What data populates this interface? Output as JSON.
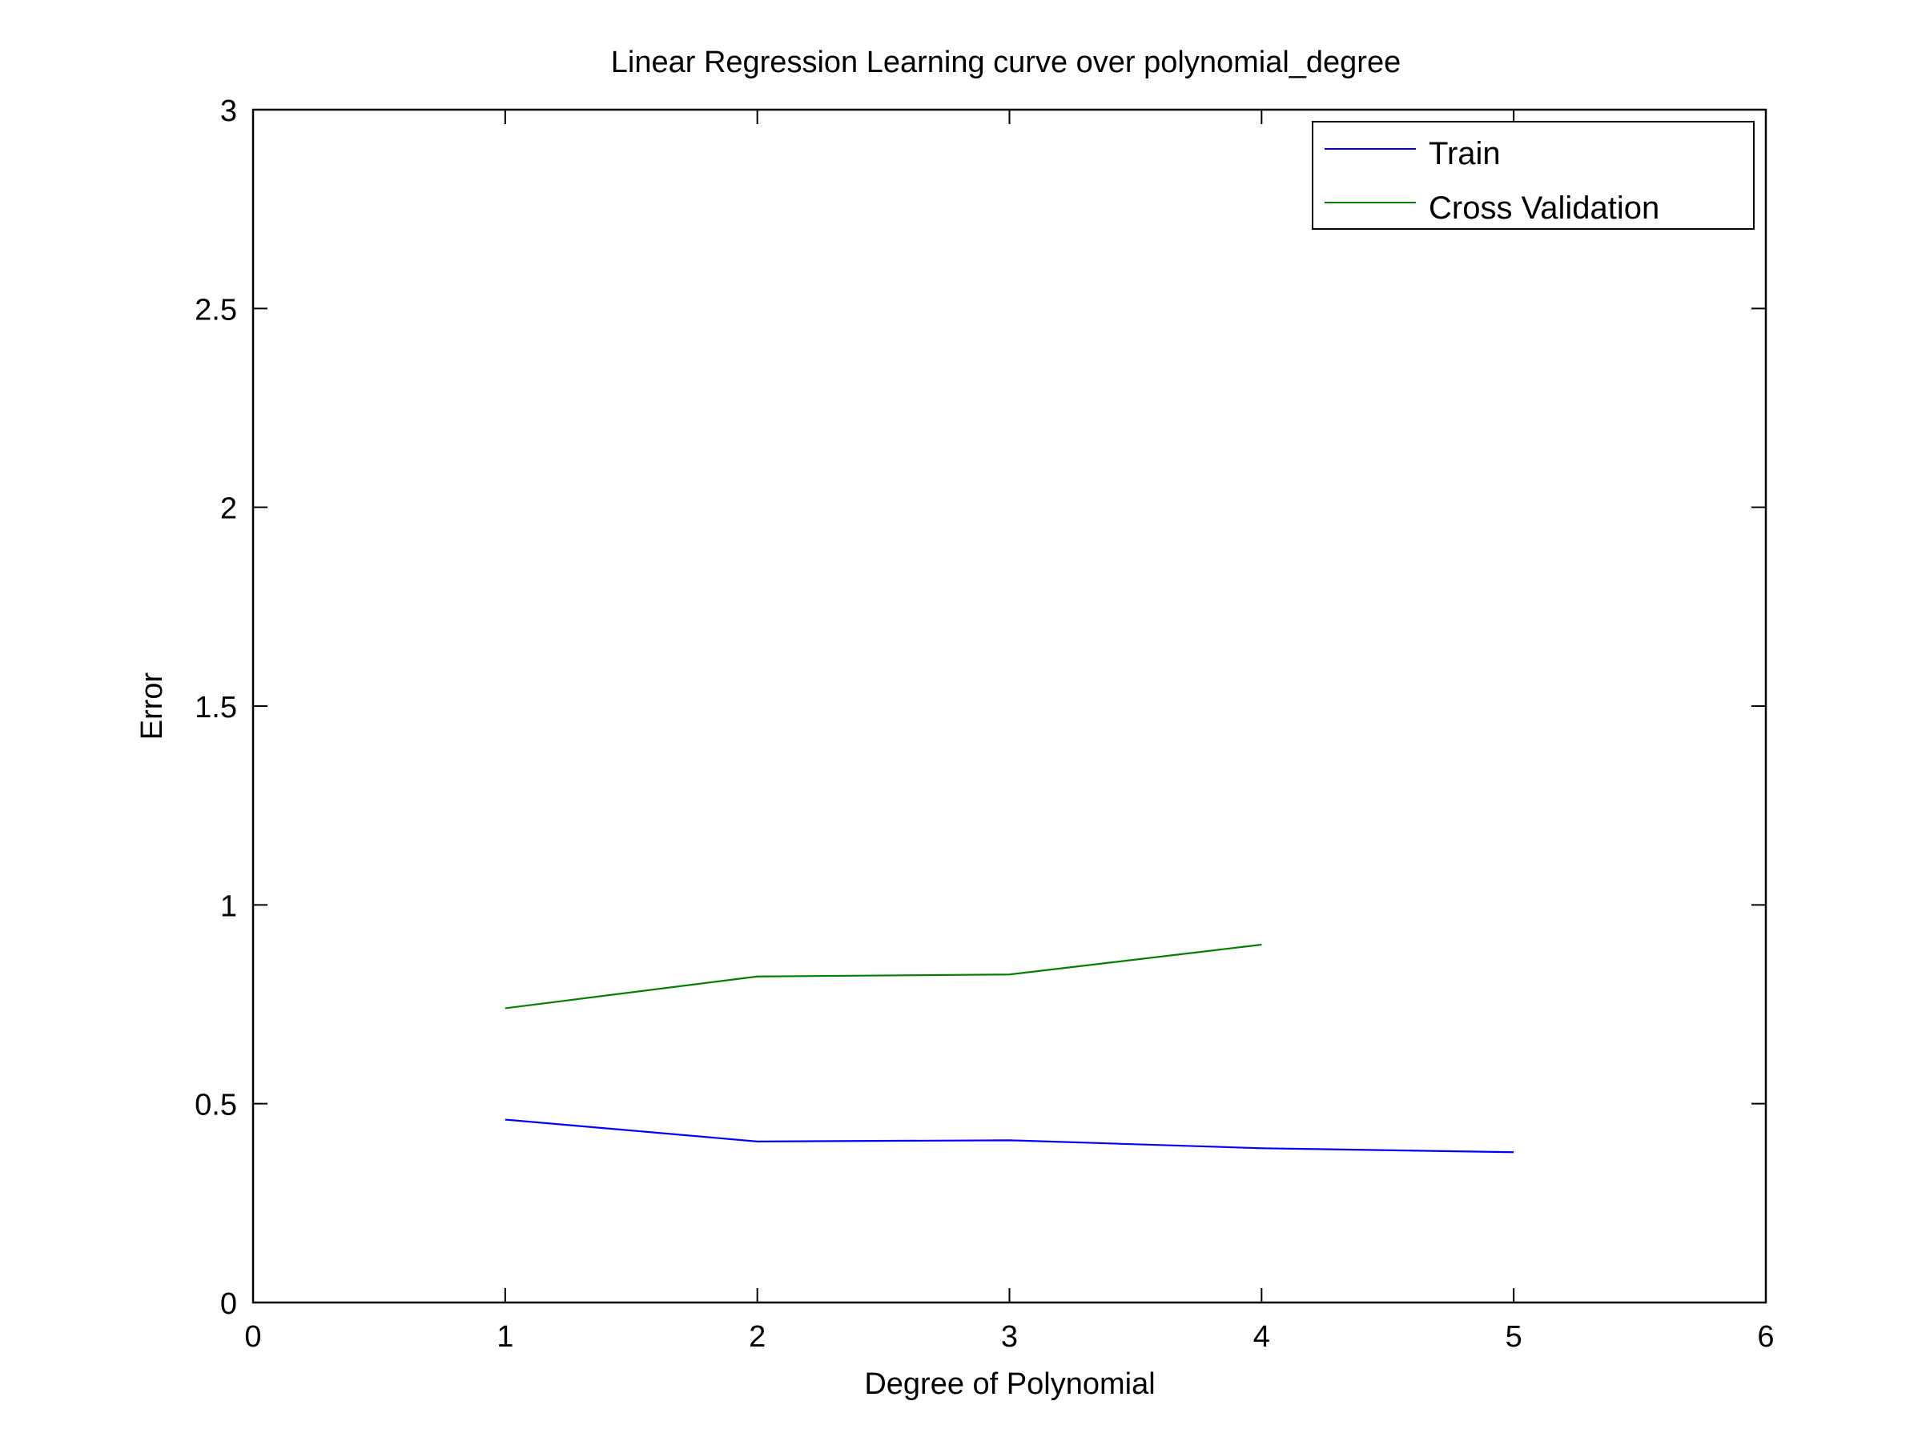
{
  "chart_data": {
    "type": "line",
    "title": "Linear Regression Learning curve over polynomial_degree",
    "xlabel": "Degree of Polynomial",
    "ylabel": "Error",
    "xlim": [
      0,
      6
    ],
    "ylim": [
      0,
      3
    ],
    "x_ticks": [
      "0",
      "1",
      "2",
      "3",
      "4",
      "5",
      "6"
    ],
    "y_ticks": [
      "0",
      "0.5",
      "1",
      "1.5",
      "2",
      "2.5",
      "3"
    ],
    "grid": false,
    "legend_position": "top-right",
    "series": [
      {
        "name": "Train",
        "color": "#0000ff",
        "x": [
          1,
          2,
          3,
          4,
          5
        ],
        "y": [
          0.46,
          0.405,
          0.408,
          0.388,
          0.378
        ]
      },
      {
        "name": "Cross Validation",
        "color": "#008000",
        "x": [
          1,
          2,
          3,
          4
        ],
        "y": [
          0.74,
          0.82,
          0.825,
          0.9
        ]
      }
    ]
  }
}
